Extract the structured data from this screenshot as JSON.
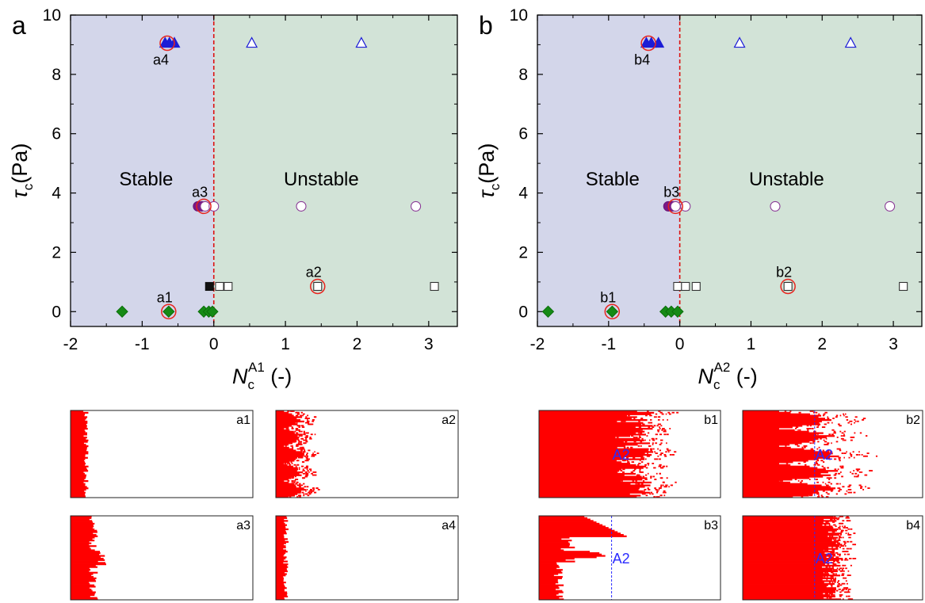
{
  "chart_data": [
    {
      "panel_label": "a",
      "type": "scatter",
      "xlabel": {
        "main": "N",
        "sub": "c",
        "sup": "A1",
        "unit": " (-)"
      },
      "ylabel": {
        "main": "τ",
        "sub": "c",
        "unit": "(Pa)"
      },
      "xlim": [
        -2,
        3.4
      ],
      "ylim": [
        -0.5,
        10
      ],
      "xticks": [
        "-2",
        "-1",
        "0",
        "1",
        "2",
        "3"
      ],
      "yticks": [
        "0",
        "2",
        "4",
        "6",
        "8",
        "10"
      ],
      "boundary_x": 0,
      "regions": {
        "left": "Stable",
        "right": "Unstable"
      },
      "colors": {
        "stable": "#d3d6ea",
        "unstable": "#d2e3d7",
        "boundary": "#dd1111",
        "highlight": "#e8231d"
      },
      "series": [
        {
          "marker": "diamond",
          "fill": "#158a15",
          "stroke": "#0b6f0b",
          "points": [
            [
              -1.28,
              0
            ],
            [
              -0.63,
              0
            ],
            [
              -0.14,
              0
            ],
            [
              -0.07,
              0
            ],
            [
              -0.02,
              0
            ]
          ]
        },
        {
          "marker": "square",
          "fill": "#ffffff",
          "stroke": "#333333",
          "points": [
            [
              0.08,
              0.85
            ],
            [
              0.2,
              0.85
            ],
            [
              1.45,
              0.85
            ],
            [
              3.08,
              0.85
            ]
          ]
        },
        {
          "marker": "square",
          "fill": "#111111",
          "stroke": "#111111",
          "points": [
            [
              -0.06,
              0.85
            ]
          ]
        },
        {
          "marker": "circle",
          "fill": "#7a1a87",
          "stroke": "#6a1578",
          "points": [
            [
              -0.22,
              3.55
            ],
            [
              -0.17,
              3.55
            ]
          ]
        },
        {
          "marker": "circle",
          "fill": "#ffffff",
          "stroke": "#8a3a96",
          "points": [
            [
              -0.12,
              3.55
            ],
            [
              0,
              3.55
            ],
            [
              1.22,
              3.55
            ],
            [
              2.82,
              3.55
            ]
          ]
        },
        {
          "marker": "triangle",
          "fill": "#1c1cd6",
          "stroke": "#1c1cd6",
          "points": [
            [
              -0.68,
              9.05
            ],
            [
              -0.62,
              9.05
            ],
            [
              -0.55,
              9.05
            ]
          ]
        },
        {
          "marker": "triangle",
          "fill": "#ffffff",
          "stroke": "#1c1cd6",
          "points": [
            [
              0.53,
              9.05
            ],
            [
              2.06,
              9.05
            ]
          ]
        }
      ],
      "annotations": [
        {
          "label": "a1",
          "x": -0.63,
          "y": 0,
          "ring": true
        },
        {
          "label": "a2",
          "x": 1.45,
          "y": 0.85,
          "ring": true
        },
        {
          "label": "a3",
          "x": -0.14,
          "y": 3.55,
          "ring": true
        },
        {
          "label": "a4",
          "x": -0.65,
          "y": 9.05,
          "ring": true
        }
      ]
    },
    {
      "panel_label": "b",
      "type": "scatter",
      "xlabel": {
        "main": "N",
        "sub": "c",
        "sup": "A2",
        "unit": " (-)"
      },
      "ylabel": {
        "main": "τ",
        "sub": "c",
        "unit": "(Pa)"
      },
      "xlim": [
        -2,
        3.4
      ],
      "ylim": [
        -0.5,
        10
      ],
      "xticks": [
        "-2",
        "-1",
        "0",
        "1",
        "2",
        "3"
      ],
      "yticks": [
        "0",
        "2",
        "4",
        "6",
        "8",
        "10"
      ],
      "boundary_x": 0,
      "regions": {
        "left": "Stable",
        "right": "Unstable"
      },
      "colors": {
        "stable": "#d3d6ea",
        "unstable": "#d2e3d7",
        "boundary": "#dd1111",
        "highlight": "#e8231d"
      },
      "series": [
        {
          "marker": "diamond",
          "fill": "#158a15",
          "stroke": "#0b6f0b",
          "points": [
            [
              -1.85,
              0
            ],
            [
              -0.95,
              0
            ],
            [
              -0.2,
              0
            ],
            [
              -0.12,
              0
            ],
            [
              -0.03,
              0
            ]
          ]
        },
        {
          "marker": "square",
          "fill": "#ffffff",
          "stroke": "#333333",
          "points": [
            [
              -0.03,
              0.85
            ],
            [
              0.08,
              0.85
            ],
            [
              0.23,
              0.85
            ],
            [
              1.52,
              0.85
            ],
            [
              3.14,
              0.85
            ]
          ]
        },
        {
          "marker": "circle",
          "fill": "#7a1a87",
          "stroke": "#6a1578",
          "points": [
            [
              -0.16,
              3.55
            ],
            [
              -0.1,
              3.55
            ]
          ]
        },
        {
          "marker": "circle",
          "fill": "#ffffff",
          "stroke": "#8a3a96",
          "points": [
            [
              -0.06,
              3.55
            ],
            [
              0.08,
              3.55
            ],
            [
              1.34,
              3.55
            ],
            [
              2.95,
              3.55
            ]
          ]
        },
        {
          "marker": "triangle",
          "fill": "#1c1cd6",
          "stroke": "#1c1cd6",
          "points": [
            [
              -0.47,
              9.05
            ],
            [
              -0.4,
              9.05
            ],
            [
              -0.3,
              9.05
            ]
          ]
        },
        {
          "marker": "triangle",
          "fill": "#ffffff",
          "stroke": "#1c1cd6",
          "points": [
            [
              0.84,
              9.05
            ],
            [
              2.4,
              9.05
            ]
          ]
        }
      ],
      "annotations": [
        {
          "label": "b1",
          "x": -0.95,
          "y": 0,
          "ring": true
        },
        {
          "label": "b2",
          "x": 1.52,
          "y": 0.85,
          "ring": true
        },
        {
          "label": "b3",
          "x": -0.06,
          "y": 3.55,
          "ring": true
        },
        {
          "label": "b4",
          "x": -0.44,
          "y": 9.05,
          "ring": true
        }
      ]
    }
  ],
  "insets": [
    {
      "label": "a1",
      "kind": "thin",
      "front": 0.07,
      "front_var": 0.03,
      "show_line": false
    },
    {
      "label": "a2",
      "kind": "finger",
      "front": 0.1,
      "front_var": 0.12,
      "show_line": false
    },
    {
      "label": "a3",
      "kind": "bulge",
      "front": 0.1,
      "front_var": 0.05,
      "show_line": false
    },
    {
      "label": "a4",
      "kind": "thin",
      "front": 0.04,
      "front_var": 0.03,
      "show_line": false
    },
    {
      "label": "b1",
      "kind": "dense",
      "front": 0.42,
      "front_var": 0.22,
      "show_line": false,
      "tag": "A2"
    },
    {
      "label": "b2",
      "kind": "finger",
      "front": 0.45,
      "front_var": 0.35,
      "show_line": true,
      "line_pos": 0.4,
      "tag": "A2"
    },
    {
      "label": "b3",
      "kind": "channel",
      "front": 0.27,
      "front_var": 0.15,
      "show_line": true,
      "line_pos": 0.4,
      "tag": "A2"
    },
    {
      "label": "b4",
      "kind": "dense",
      "front": 0.44,
      "front_var": 0.12,
      "show_line": true,
      "line_pos": 0.4,
      "tag": "A2"
    }
  ],
  "inset_colors": {
    "fill": "#ff0000",
    "line": "#2a2aff",
    "tag": "#2a2aff"
  }
}
